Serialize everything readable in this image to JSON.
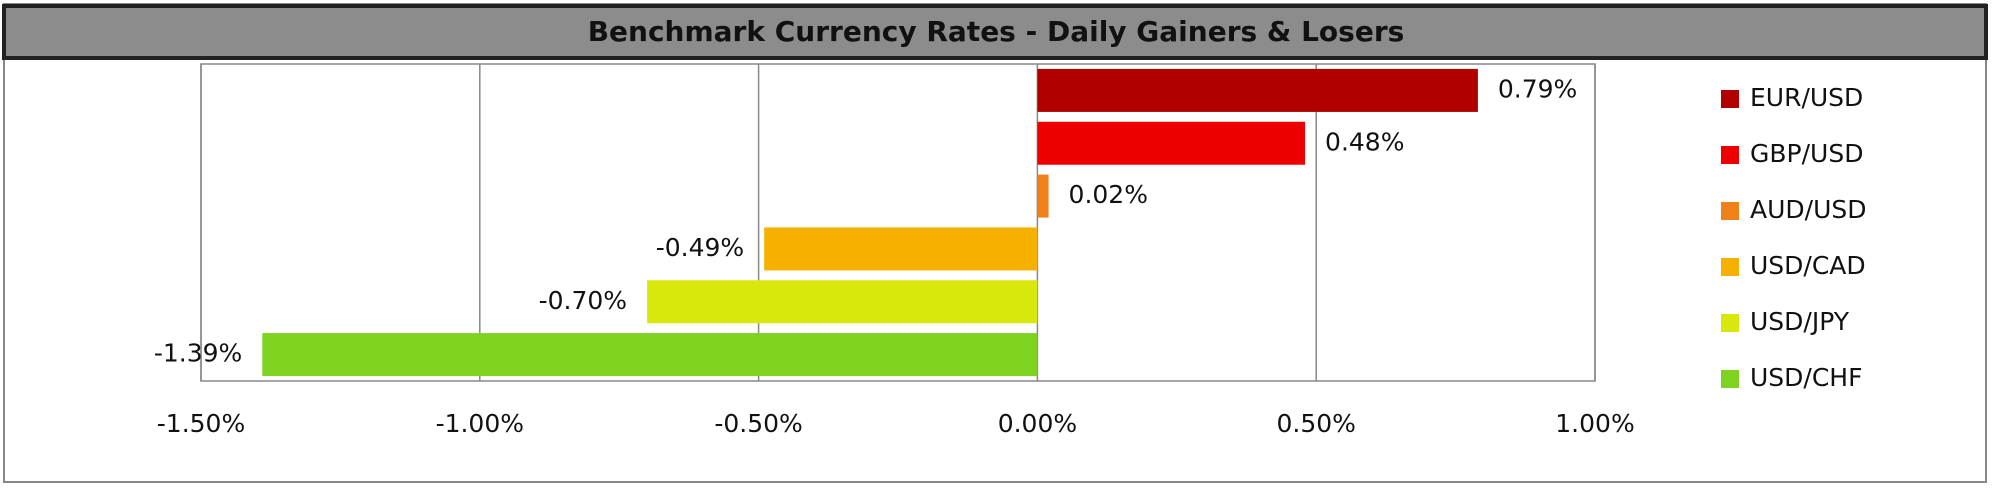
{
  "chart_data": {
    "type": "hbar",
    "title": "Benchmark Currency Rates - Daily Gainers & Losers",
    "series": [
      {
        "name": "EUR/USD",
        "color": "#b00000",
        "values": [
          0.79
        ],
        "value_labels": [
          "0.79%"
        ]
      },
      {
        "name": "GBP/USD",
        "color": "#ee0000",
        "values": [
          0.48
        ],
        "value_labels": [
          "0.48%"
        ]
      },
      {
        "name": "AUD/USD",
        "color": "#f08018",
        "values": [
          0.02
        ],
        "value_labels": [
          "0.02%"
        ]
      },
      {
        "name": "USD/CAD",
        "color": "#f5b000",
        "values": [
          -0.49
        ],
        "value_labels": [
          "-0.49%"
        ]
      },
      {
        "name": "USD/JPY",
        "color": "#d8e80c",
        "values": [
          -0.7
        ],
        "value_labels": [
          "-0.70%"
        ]
      },
      {
        "name": "USD/CHF",
        "color": "#7ed321",
        "values": [
          -1.39
        ],
        "value_labels": [
          "-1.39%"
        ]
      }
    ],
    "xlim": [
      -1.5,
      1.0
    ],
    "xticks": [
      {
        "value": -1.5,
        "label": "-1.50%"
      },
      {
        "value": -1.0,
        "label": "-1.00%"
      },
      {
        "value": -0.5,
        "label": "-0.50%"
      },
      {
        "value": 0,
        "label": "0.00%"
      },
      {
        "value": 0.5,
        "label": "0.50%"
      },
      {
        "value": 1.0,
        "label": "1.00%"
      }
    ],
    "grid": true,
    "legend": "right"
  }
}
